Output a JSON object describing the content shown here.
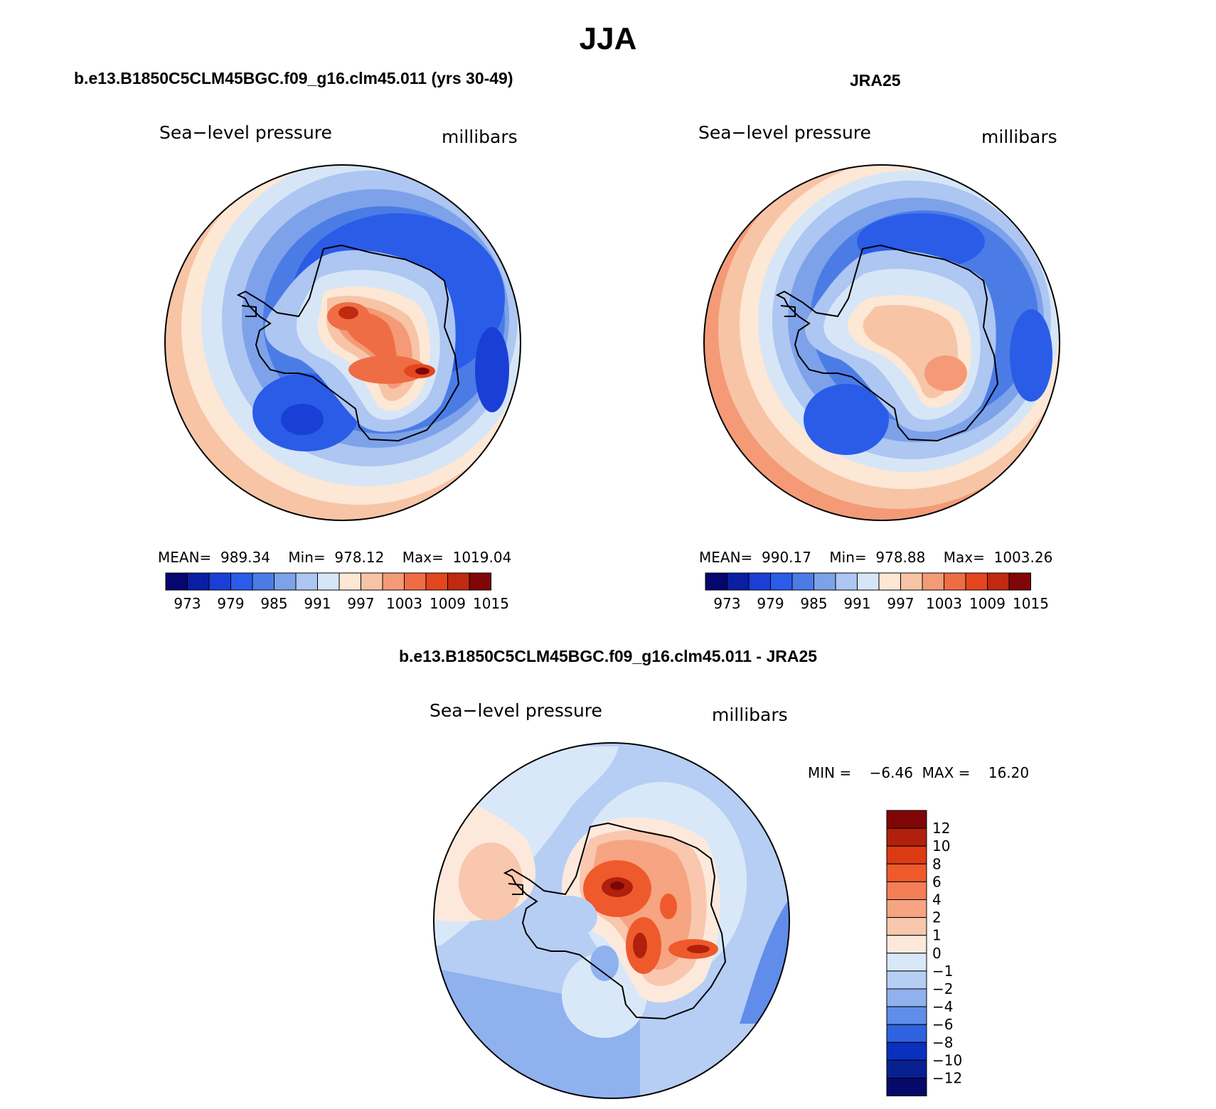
{
  "page_title": "JJA",
  "panels": [
    {
      "title": "b.e13.B1850C5CLM45BGC.f09_g16.clm45.011 (yrs 30-49)",
      "left_label": "Sea−level pressure",
      "right_label": "millibars",
      "stats": "MEAN=  989.34    Min=  978.12    Max=  1019.04",
      "colorbar_ticks": [
        "973",
        "979",
        "985",
        "991",
        "997",
        "1003",
        "1009",
        "1015"
      ]
    },
    {
      "title": "JRA25",
      "left_label": "Sea−level pressure",
      "right_label": "millibars",
      "stats": "MEAN=  990.17    Min=  978.88    Max=  1003.26",
      "colorbar_ticks": [
        "973",
        "979",
        "985",
        "991",
        "997",
        "1003",
        "1009",
        "1015"
      ]
    },
    {
      "title": "b.e13.B1850C5CLM45BGC.f09_g16.clm45.011 - JRA25",
      "left_label": "Sea−level pressure",
      "right_label": "millibars",
      "stats": "MIN =    −6.46  MAX =    16.20",
      "colorbar_ticks": [
        "12",
        "10",
        "8",
        "6",
        "4",
        "2",
        "1",
        "0",
        "−1",
        "−2",
        "−4",
        "−6",
        "−8",
        "−10",
        "−12"
      ]
    }
  ],
  "palette": [
    "#06066f",
    "#0a1ea3",
    "#1a3fd6",
    "#2a5ce8",
    "#4b7ce6",
    "#7da2ea",
    "#adc6f2",
    "#d6e6f7",
    "#fde7d5",
    "#f7c4a6",
    "#f49a77",
    "#ef6d44",
    "#e4461d",
    "#c02a10",
    "#7f0606"
  ],
  "diff_palette": [
    "#7f0606",
    "#b0200c",
    "#dc3a12",
    "#ef5a2c",
    "#f47e55",
    "#f6a482",
    "#f8c7ad",
    "#fde9dc",
    "#d9e8f8",
    "#b6cef3",
    "#8fb1ee",
    "#5f8de9",
    "#2f62e0",
    "#0a30c0",
    "#082190",
    "#050a6a"
  ]
}
